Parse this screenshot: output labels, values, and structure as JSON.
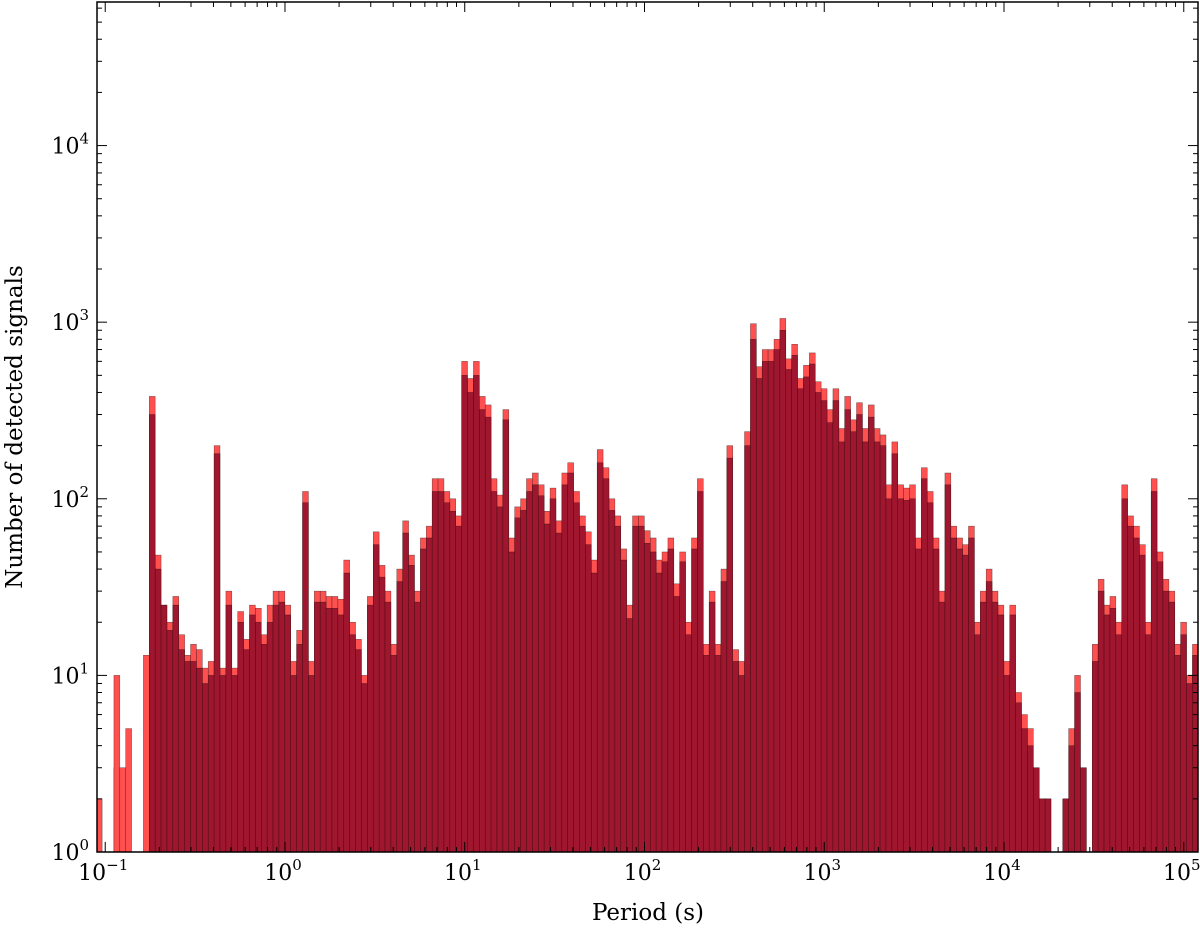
{
  "chart_data": {
    "type": "bar",
    "title": "",
    "xlabel": "Period (s)",
    "ylabel": "Number of detected signals",
    "x_scale": "log",
    "y_scale": "log",
    "xlim": [
      0.09,
      120000
    ],
    "ylim": [
      1,
      65000
    ],
    "grid": false,
    "legend": "none",
    "x_ticks": [
      {
        "base": "10",
        "exp": "−1",
        "value": 0.1
      },
      {
        "base": "10",
        "exp": "0",
        "value": 1
      },
      {
        "base": "10",
        "exp": "1",
        "value": 10
      },
      {
        "base": "10",
        "exp": "2",
        "value": 100
      },
      {
        "base": "10",
        "exp": "3",
        "value": 1000
      },
      {
        "base": "10",
        "exp": "4",
        "value": 10000
      },
      {
        "base": "10",
        "exp": "5",
        "value": 100000
      }
    ],
    "y_ticks": [
      {
        "base": "10",
        "exp": "0",
        "value": 1
      },
      {
        "base": "10",
        "exp": "1",
        "value": 10
      },
      {
        "base": "10",
        "exp": "2",
        "value": 100
      },
      {
        "base": "10",
        "exp": "3",
        "value": 1000
      },
      {
        "base": "10",
        "exp": "4",
        "value": 10000
      }
    ],
    "bins_per_decade": 30.5,
    "log10_start": -1.05,
    "series": [
      {
        "color": "#1a447c",
        "values": [
          1,
          1,
          1,
          3,
          1,
          1,
          1,
          1,
          1,
          1,
          4,
          1,
          1,
          1,
          1,
          1,
          1,
          1,
          1,
          1,
          1,
          1,
          1,
          1,
          1,
          1,
          1,
          1,
          1,
          1,
          1,
          1,
          1,
          1,
          1,
          1,
          1,
          1,
          1,
          1,
          1,
          1,
          1,
          1,
          1,
          1,
          1,
          1,
          1,
          1,
          1,
          1,
          1,
          1,
          1,
          1,
          1,
          1,
          1,
          1,
          1,
          1,
          1,
          1,
          1,
          1,
          1,
          1,
          1,
          1,
          1,
          1,
          1,
          1,
          1,
          1,
          1,
          1,
          1,
          1,
          1,
          1,
          1,
          1,
          1,
          1,
          1,
          1,
          1,
          1,
          1,
          1,
          1,
          1,
          1,
          1,
          1,
          1,
          1,
          1,
          1,
          1,
          1,
          1,
          1,
          1,
          1,
          1,
          1,
          1,
          1,
          1,
          1,
          1,
          1,
          1,
          1,
          1,
          1,
          1,
          1,
          1,
          1,
          1,
          1,
          1,
          1,
          1,
          1,
          1,
          1,
          1,
          1,
          1,
          1,
          1,
          1,
          1,
          1,
          1,
          1,
          1,
          1,
          1,
          1,
          1,
          1,
          1,
          1,
          1,
          1,
          1,
          1,
          1,
          1,
          1,
          1,
          1,
          1,
          1,
          1,
          1,
          1,
          1,
          1,
          1,
          1,
          1,
          1,
          1,
          1,
          1,
          1,
          1,
          1,
          1,
          1,
          1,
          1,
          1,
          1,
          1,
          1,
          1,
          1,
          1,
          1,
          1,
          1,
          1,
          1,
          1,
          1,
          1,
          1,
          1,
          1,
          1,
          1,
          1,
          1,
          1,
          1,
          1,
          1,
          1,
          1,
          1,
          1,
          1
        ],
        "values_note": ""
      },
      {
        "color": "#ff5050",
        "values": [
          2,
          1,
          1,
          10,
          3,
          5,
          1,
          1,
          13,
          380,
          48,
          25,
          20,
          28,
          17,
          13,
          15,
          14,
          11,
          12,
          200,
          11,
          30,
          11,
          23,
          16,
          25,
          24,
          17,
          25,
          30,
          30,
          25,
          12,
          18,
          110,
          12,
          30,
          30,
          28,
          28,
          27,
          45,
          20,
          16,
          10,
          28,
          65,
          42,
          30,
          15,
          40,
          75,
          48,
          30,
          60,
          70,
          130,
          130,
          110,
          100,
          80,
          600,
          480,
          600,
          380,
          340,
          130,
          105,
          320,
          60,
          90,
          100,
          130,
          140,
          120,
          85,
          115,
          75,
          140,
          160,
          110,
          80,
          65,
          45,
          190,
          150,
          100,
          80,
          52,
          25,
          80,
          80,
          66,
          60,
          45,
          50,
          60,
          33,
          50,
          20,
          60,
          130,
          15,
          30,
          15,
          40,
          200,
          14,
          12,
          240,
          980,
          560,
          700,
          700,
          800,
          1050,
          620,
          750,
          480,
          570,
          670,
          460,
          420,
          320,
          420,
          250,
          380,
          280,
          350,
          250,
          340,
          250,
          230,
          120,
          210,
          120,
          115,
          120,
          60,
          150,
          110,
          60,
          30,
          140,
          70,
          60,
          55,
          70,
          20,
          30,
          40,
          30,
          25,
          12,
          25,
          8,
          6,
          5,
          3,
          2,
          2,
          1,
          1,
          2,
          5,
          10,
          3,
          1,
          15,
          35,
          25,
          28,
          20,
          120,
          80,
          70,
          55,
          20,
          130,
          50,
          35,
          30,
          15,
          20,
          10,
          15,
          20,
          10,
          20,
          10,
          13,
          10,
          40,
          15,
          10,
          1,
          20,
          25,
          13,
          5,
          15,
          25,
          8,
          5,
          2,
          2,
          3,
          30,
          6,
          5,
          12,
          100,
          6,
          3,
          2,
          2,
          8,
          10,
          12,
          4
        ]
      },
      {
        "color": "#a0162e",
        "values": [
          1,
          1,
          1,
          1,
          1,
          1,
          1,
          1,
          1,
          300,
          40,
          25,
          18,
          25,
          14,
          12,
          12,
          11,
          9,
          10,
          180,
          10,
          25,
          10,
          20,
          14,
          22,
          20,
          15,
          20,
          25,
          26,
          22,
          10,
          15,
          95,
          10,
          26,
          26,
          24,
          24,
          22,
          38,
          17,
          14,
          9,
          25,
          55,
          36,
          26,
          13,
          34,
          64,
          42,
          26,
          52,
          60,
          110,
          110,
          95,
          85,
          70,
          500,
          400,
          500,
          320,
          290,
          110,
          90,
          280,
          50,
          78,
          86,
          110,
          120,
          104,
          72,
          100,
          64,
          120,
          140,
          95,
          70,
          55,
          38,
          160,
          130,
          86,
          70,
          45,
          21,
          70,
          70,
          56,
          50,
          38,
          44,
          52,
          28,
          44,
          17,
          52,
          110,
          13,
          26,
          13,
          34,
          170,
          12,
          10,
          200,
          800,
          480,
          600,
          600,
          700,
          900,
          540,
          650,
          420,
          490,
          580,
          400,
          360,
          270,
          360,
          210,
          320,
          240,
          300,
          210,
          290,
          210,
          200,
          100,
          180,
          100,
          98,
          100,
          52,
          130,
          95,
          52,
          26,
          120,
          60,
          52,
          48,
          60,
          17,
          26,
          34,
          26,
          22,
          10,
          22,
          7,
          5,
          4,
          3,
          2,
          2,
          1,
          1,
          2,
          4,
          8,
          3,
          1,
          12,
          30,
          22,
          24,
          17,
          100,
          70,
          60,
          48,
          17,
          110,
          44,
          30,
          26,
          13,
          17,
          9,
          13,
          17,
          9,
          17,
          9,
          11,
          9,
          34,
          13,
          9,
          1,
          17,
          22,
          11,
          4,
          13,
          22,
          7,
          4,
          2,
          2,
          3,
          26,
          5,
          4,
          10,
          85,
          5,
          3,
          2,
          2,
          7,
          9,
          10,
          3
        ]
      }
    ]
  }
}
